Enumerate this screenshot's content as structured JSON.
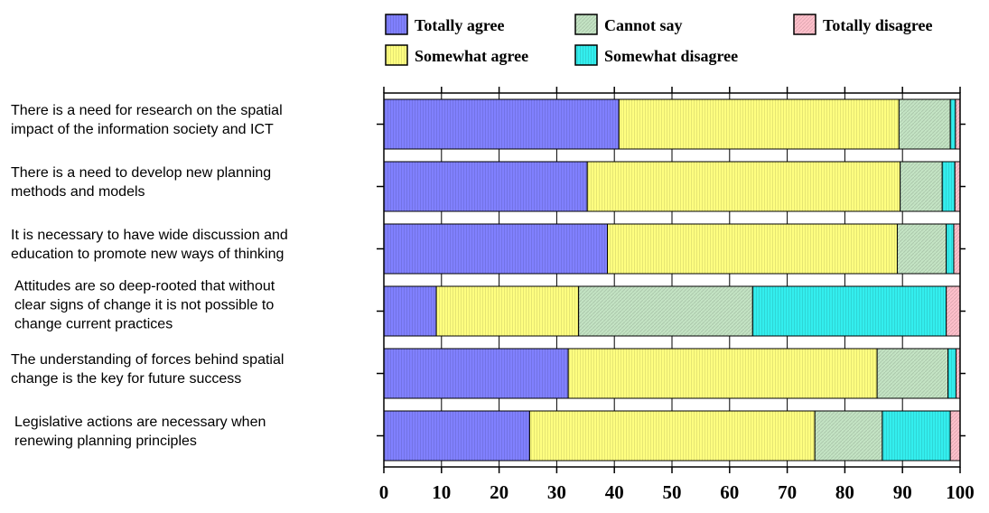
{
  "chart_data": {
    "type": "bar",
    "orientation": "horizontal",
    "stacked": true,
    "categories": [
      "There is a need for research on the spatial impact of the information society and ICT",
      "There is a need to develop new planning methods and models",
      "It is necessary to have wide discussion and education to promote new ways of thinking",
      "Attitudes are so deep-rooted that without clear signs of change it is not possible to change current practices",
      "The understanding of forces behind spatial change is the key for  future success",
      "Legislative actions are necessary  when renewing planning principles"
    ],
    "category_lines": [
      [
        "There is a need for research on the spatial",
        "impact of the information society and ICT"
      ],
      [
        "There is a need to develop new planning",
        "methods and models"
      ],
      [
        "It is necessary to have wide discussion and",
        "education to promote new ways of thinking"
      ],
      [
        "Attitudes are so deep-rooted that without",
        "clear signs of change it is not possible to",
        "change current practices"
      ],
      [
        "The understanding of forces behind spatial",
        "change is the key for  future success"
      ],
      [
        "Legislative actions are necessary  when",
        "renewing planning principles"
      ]
    ],
    "series": [
      {
        "name": "Totally agree",
        "color": "#8080ff",
        "values": [
          40.8,
          35.3,
          38.8,
          9.1,
          32.0,
          25.3
        ]
      },
      {
        "name": "Somewhat agree",
        "color": "#ffff80",
        "values": [
          48.6,
          54.3,
          50.3,
          24.7,
          53.6,
          49.5
        ]
      },
      {
        "name": "Cannot say",
        "color": "#c4e4c4",
        "values": [
          8.9,
          7.3,
          8.5,
          30.2,
          12.3,
          11.7
        ]
      },
      {
        "name": "Somewhat disagree",
        "color": "#33eeee",
        "values": [
          0.9,
          2.2,
          1.3,
          33.6,
          1.4,
          11.8
        ]
      },
      {
        "name": "Totally disagree",
        "color": "#ffc0cb",
        "values": [
          0.8,
          0.9,
          1.1,
          2.4,
          0.7,
          1.7
        ]
      }
    ],
    "xticks": [
      "0",
      "10",
      "20",
      "30",
      "40",
      "50",
      "60",
      "70",
      "80",
      "90",
      "100"
    ],
    "xlim": [
      0,
      100
    ],
    "xlabel": "",
    "ylabel": "",
    "title": "",
    "grid": true,
    "legend_position": "top"
  }
}
